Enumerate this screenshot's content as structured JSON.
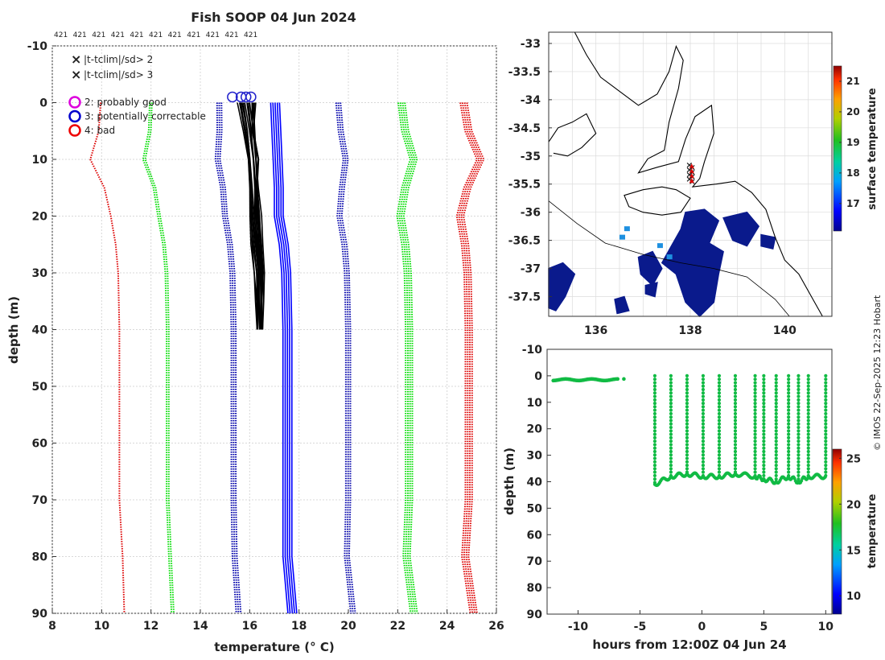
{
  "page_title": "Fish SOOP 04 Jun 2024",
  "credit": "© IMOS 22-Sep-2025 12:23 Hobart",
  "chart_data": [
    {
      "type": "line",
      "name": "temperature-profile",
      "title": "Fish SOOP 04 Jun 2024",
      "xlabel": "temperature (° C)",
      "ylabel": "depth (m)",
      "xlim": [
        8,
        26
      ],
      "ylim": [
        90,
        -10
      ],
      "xticks": [
        8,
        10,
        12,
        14,
        16,
        18,
        20,
        22,
        24,
        26
      ],
      "yticks": [
        -10,
        0,
        10,
        20,
        30,
        40,
        50,
        60,
        70,
        80,
        90
      ],
      "grid": true,
      "top_labels": [
        "421",
        "421",
        "421",
        "421",
        "421",
        "421",
        "421",
        "421",
        "421",
        "421",
        "421"
      ],
      "legend_cross": [
        {
          "label": "|t-tclim|/sd> 2",
          "color": "#00dd00"
        },
        {
          "label": "|t-tclim|/sd> 3",
          "color": "#dd0000"
        }
      ],
      "legend_circle": [
        {
          "label": "2: probably good",
          "color": "#dd00dd"
        },
        {
          "label": "3: potentially correctable",
          "color": "#0000cc"
        },
        {
          "label": "4: bad",
          "color": "#ee0000"
        }
      ],
      "climatology": {
        "depths": [
          0,
          5,
          10,
          15,
          20,
          25,
          30,
          40,
          50,
          60,
          70,
          80,
          90
        ],
        "mean": [
          16.85,
          16.9,
          16.95,
          17.0,
          17.0,
          17.2,
          17.3,
          17.35,
          17.35,
          17.35,
          17.35,
          17.35,
          17.55
        ],
        "sd": [
          2.65,
          2.7,
          2.85,
          2.65,
          2.55,
          2.55,
          2.55,
          2.55,
          2.55,
          2.55,
          2.55,
          2.5,
          2.55
        ],
        "colors": {
          "mean": "#0000ff",
          "sd2": "#00dd00",
          "sd3": "#dd0000",
          "sd1": "#0000aa"
        }
      },
      "profiles": {
        "color": "#000000",
        "depths": [
          0,
          5,
          10,
          15,
          20,
          25,
          30,
          35,
          40
        ],
        "temps": [
          [
            15.6,
            15.8,
            15.95,
            16.05,
            16.1,
            16.15,
            16.2,
            16.25,
            16.25
          ],
          [
            15.8,
            15.95,
            16.1,
            16.2,
            16.25,
            16.3,
            16.35,
            16.35,
            16.35
          ],
          [
            16.0,
            16.1,
            16.2,
            16.3,
            16.4,
            16.4,
            16.45,
            16.45,
            16.45
          ],
          [
            15.5,
            15.7,
            15.9,
            16.0,
            16.05,
            16.1,
            16.2,
            16.2,
            16.25
          ],
          [
            16.1,
            16.05,
            16.3,
            16.25,
            16.3,
            16.35,
            16.4,
            16.35,
            16.4
          ]
        ],
        "qc_circles": [
          [
            15.3,
            -1
          ],
          [
            15.65,
            -1
          ],
          [
            15.85,
            -1
          ],
          [
            16.05,
            -1
          ]
        ]
      }
    },
    {
      "type": "heatmap",
      "name": "sst-map",
      "xlabel": "",
      "ylabel": "",
      "xlim": [
        135,
        141
      ],
      "ylim": [
        -37.85,
        -32.8
      ],
      "xticks": [
        136,
        138,
        140
      ],
      "yticks": [
        -33,
        -33.5,
        -34,
        -34.5,
        -35,
        -35.5,
        -36,
        -36.5,
        -37,
        -37.5
      ],
      "colorbar_label": "surface temperature",
      "colorbar_ticks": [
        17,
        18,
        19,
        20,
        21
      ],
      "colorbar_range": [
        16.1,
        21.5
      ],
      "profile_positions": {
        "lon": 138.0,
        "lat_range": [
          -35.15,
          -35.45
        ]
      }
    },
    {
      "type": "scatter",
      "name": "depth-time",
      "xlabel": "hours from 12:00Z 04 Jun 24",
      "ylabel": "depth (m)",
      "xlim": [
        -12.5,
        10.5
      ],
      "ylim": [
        90,
        -10
      ],
      "xticks": [
        -10,
        -5,
        0,
        5,
        10
      ],
      "yticks": [
        -10,
        0,
        10,
        20,
        30,
        40,
        50,
        60,
        70,
        80,
        90
      ],
      "color": "#11bb44",
      "colorbar_label": "temperature",
      "colorbar_ticks": [
        10,
        15,
        20,
        25
      ],
      "colorbar_range": [
        8,
        26
      ],
      "surface_segment": {
        "x": [
          -12,
          -6.8
        ],
        "depth": 1.5
      },
      "casts": [
        {
          "x": -3.8,
          "bottom": 41
        },
        {
          "x": -2.5,
          "bottom": 38
        },
        {
          "x": -1.2,
          "bottom": 37
        },
        {
          "x": 0.1,
          "bottom": 38
        },
        {
          "x": 1.4,
          "bottom": 38
        },
        {
          "x": 2.7,
          "bottom": 37
        },
        {
          "x": 4.3,
          "bottom": 38
        },
        {
          "x": 5.0,
          "bottom": 39
        },
        {
          "x": 6.0,
          "bottom": 40
        },
        {
          "x": 7.0,
          "bottom": 38
        },
        {
          "x": 7.8,
          "bottom": 40
        },
        {
          "x": 8.6,
          "bottom": 38
        },
        {
          "x": 10.0,
          "bottom": 38
        }
      ]
    }
  ]
}
